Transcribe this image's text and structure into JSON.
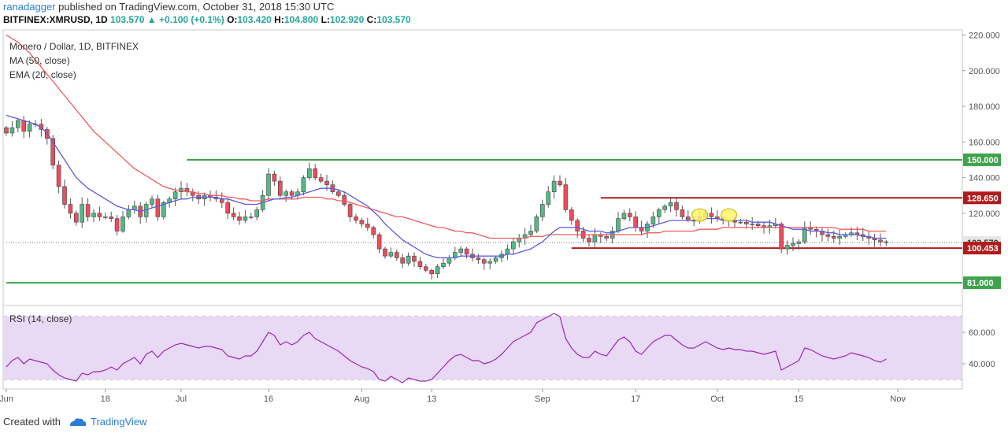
{
  "header": {
    "author": "ranadagger",
    "published": "published on TradingView.com, October 31, 2018 15:30 UTC",
    "symbol": "BITFINEX:XMRUSD, 1D",
    "last": "103.570",
    "arrow": "▲",
    "change": "+0.100 (+0.1%)",
    "o_label": "O:",
    "o": "103.420",
    "h_label": "H:",
    "h": "104.800",
    "l_label": "L:",
    "l": "102.920",
    "c_label": "C:",
    "c": "103.570"
  },
  "footer": {
    "created": "Created with",
    "brand": "TradingView"
  },
  "colors": {
    "up": "#53b987",
    "down": "#eb4d5c",
    "ma": "#f05a5a",
    "ema": "#5b5be0",
    "support_green": "#3fa34d",
    "resistance_red": "#b01c1c",
    "rsi_line": "#9c27b0",
    "rsi_band": "#e8d9f4",
    "highlight": "#fff36b"
  },
  "chart_data": [
    {
      "type": "candlestick",
      "title": "Monero / Dollar, 1D, BITFINEX",
      "indicators": [
        "MA (50, close)",
        "EMA (20, close)"
      ],
      "ylim": [
        70,
        222
      ],
      "y_ticks": [
        "220.000",
        "200.000",
        "180.000",
        "160.000",
        "140.000",
        "120.000"
      ],
      "x_ticks": [
        {
          "label": "Jun",
          "index": 0
        },
        {
          "label": "18",
          "index": 17
        },
        {
          "label": "Jul",
          "index": 30
        },
        {
          "label": "16",
          "index": 45
        },
        {
          "label": "Aug",
          "index": 61
        },
        {
          "label": "13",
          "index": 73
        },
        {
          "label": "Sep",
          "index": 92
        },
        {
          "label": "17",
          "index": 108
        },
        {
          "label": "Oct",
          "index": 122
        },
        {
          "label": "15",
          "index": 136
        },
        {
          "label": "Nov",
          "index": 153
        }
      ],
      "levels": [
        {
          "label": "150.000",
          "value": 150,
          "color": "green",
          "from_index": 31
        },
        {
          "label": "128.650",
          "value": 128.65,
          "color": "red",
          "from_index": 102
        },
        {
          "label": "103.570",
          "value": 103.57,
          "color": "last",
          "from_index": 0
        },
        {
          "label": "100.453",
          "value": 100.453,
          "color": "red",
          "from_index": 97
        },
        {
          "label": "81.000",
          "value": 81,
          "color": "green",
          "from_index": 0
        }
      ],
      "highlights": [
        {
          "index": 119,
          "value": 119
        },
        {
          "index": 124,
          "value": 119
        }
      ],
      "close": [
        165,
        168,
        172,
        166,
        170,
        170,
        167,
        162,
        147,
        135,
        125,
        120,
        115,
        125,
        118,
        120,
        118,
        118,
        117,
        110,
        118,
        122,
        124,
        118,
        125,
        128,
        118,
        126,
        128,
        132,
        134,
        132,
        130,
        128,
        130,
        129,
        128,
        126,
        120,
        118,
        116,
        118,
        118,
        122,
        130,
        142,
        138,
        130,
        132,
        130,
        132,
        140,
        145,
        140,
        138,
        136,
        132,
        130,
        125,
        118,
        116,
        114,
        112,
        108,
        100,
        96,
        98,
        95,
        92,
        96,
        93,
        90,
        88,
        86,
        90,
        92,
        95,
        98,
        100,
        97,
        95,
        94,
        92,
        93,
        95,
        97,
        100,
        104,
        106,
        108,
        110,
        118,
        125,
        132,
        138,
        136,
        122,
        116,
        110,
        106,
        104,
        108,
        107,
        106,
        110,
        117,
        120,
        118,
        112,
        110,
        114,
        118,
        122,
        124,
        126,
        122,
        118,
        116,
        116,
        118,
        120,
        118,
        117,
        116,
        116,
        115,
        115,
        114,
        114,
        113,
        112,
        113,
        114,
        100,
        102,
        103,
        104,
        112,
        111,
        110,
        108,
        107,
        106,
        107,
        108,
        109,
        108,
        107,
        106,
        105,
        104,
        103.57
      ],
      "ma50": [
        220,
        218,
        216,
        213,
        210,
        206,
        202,
        198,
        194,
        190,
        186,
        182,
        178,
        174,
        170,
        166,
        163,
        160,
        157,
        154,
        151,
        148,
        145,
        143,
        141,
        139,
        137,
        135,
        134,
        133,
        133,
        132,
        132,
        131,
        131,
        130,
        130,
        130,
        129,
        129,
        128,
        128,
        127,
        127,
        127,
        128,
        128,
        128,
        128,
        128,
        128,
        129,
        129,
        129,
        129,
        128,
        128,
        127,
        127,
        126,
        125,
        124,
        123,
        122,
        121,
        120,
        119,
        118,
        118,
        117,
        116,
        115,
        114,
        113,
        112,
        112,
        111,
        110,
        110,
        109,
        109,
        108,
        107,
        106,
        106,
        106,
        106,
        106,
        106,
        106,
        107,
        107,
        107,
        108,
        108,
        108,
        108,
        108,
        108,
        108,
        108,
        108,
        108,
        108,
        108,
        108,
        108,
        108,
        108,
        108,
        109,
        109,
        109,
        110,
        110,
        110,
        110,
        110,
        110,
        111,
        111,
        111,
        111,
        112,
        112,
        112,
        112,
        112,
        112,
        112,
        112,
        112,
        112,
        112,
        112,
        112,
        112,
        112,
        112,
        112,
        112,
        112,
        112,
        111,
        111,
        111,
        111,
        111,
        110,
        110,
        110,
        110
      ],
      "ema20": [
        175,
        174,
        173,
        172,
        171,
        170,
        168,
        165,
        160,
        155,
        150,
        145,
        140,
        137,
        134,
        132,
        130,
        128,
        126,
        124,
        123,
        122,
        122,
        121,
        122,
        123,
        124,
        125,
        126,
        127,
        128,
        128,
        129,
        129,
        129,
        129,
        129,
        128,
        128,
        127,
        126,
        125,
        125,
        125,
        126,
        127,
        128,
        128,
        129,
        129,
        130,
        131,
        132,
        133,
        134,
        134,
        134,
        133,
        132,
        130,
        128,
        126,
        124,
        121,
        118,
        114,
        111,
        108,
        105,
        103,
        101,
        99,
        97,
        96,
        95,
        95,
        95,
        95,
        96,
        96,
        96,
        96,
        96,
        96,
        96,
        96,
        97,
        97,
        98,
        99,
        100,
        102,
        104,
        107,
        110,
        112,
        112,
        112,
        112,
        111,
        110,
        110,
        110,
        109,
        109,
        110,
        111,
        112,
        112,
        112,
        112,
        113,
        114,
        115,
        116,
        116,
        116,
        116,
        116,
        116,
        117,
        117,
        117,
        116,
        116,
        116,
        116,
        116,
        115,
        115,
        115,
        115,
        114,
        113,
        112,
        111,
        111,
        111,
        110,
        110,
        110,
        109,
        109,
        108,
        108,
        108,
        108,
        107,
        107,
        106,
        106,
        106
      ]
    },
    {
      "type": "line",
      "title": "RSI (14, close)",
      "ylim": [
        25,
        75
      ],
      "y_ticks": [
        "60.000",
        "40.000"
      ],
      "band": [
        30,
        70
      ],
      "values": [
        38,
        42,
        44,
        40,
        43,
        42,
        41,
        40,
        36,
        33,
        31,
        30,
        29,
        34,
        33,
        35,
        35,
        36,
        38,
        36,
        40,
        42,
        44,
        40,
        46,
        48,
        44,
        48,
        50,
        52,
        53,
        52,
        51,
        50,
        51,
        51,
        50,
        49,
        45,
        44,
        43,
        45,
        45,
        48,
        54,
        60,
        58,
        52,
        54,
        52,
        54,
        58,
        60,
        56,
        54,
        52,
        50,
        48,
        45,
        42,
        40,
        38,
        37,
        35,
        30,
        29,
        32,
        30,
        28,
        31,
        30,
        29,
        29,
        30,
        34,
        38,
        42,
        45,
        46,
        44,
        42,
        42,
        40,
        41,
        43,
        46,
        50,
        54,
        56,
        58,
        60,
        66,
        68,
        70,
        72,
        70,
        56,
        50,
        46,
        44,
        44,
        48,
        46,
        45,
        50,
        55,
        57,
        54,
        48,
        46,
        50,
        54,
        56,
        58,
        58,
        55,
        52,
        50,
        50,
        52,
        54,
        52,
        50,
        49,
        50,
        49,
        49,
        48,
        48,
        47,
        46,
        47,
        48,
        36,
        38,
        40,
        42,
        50,
        49,
        47,
        45,
        44,
        43,
        44,
        45,
        47,
        46,
        45,
        44,
        42,
        41,
        43
      ]
    }
  ]
}
